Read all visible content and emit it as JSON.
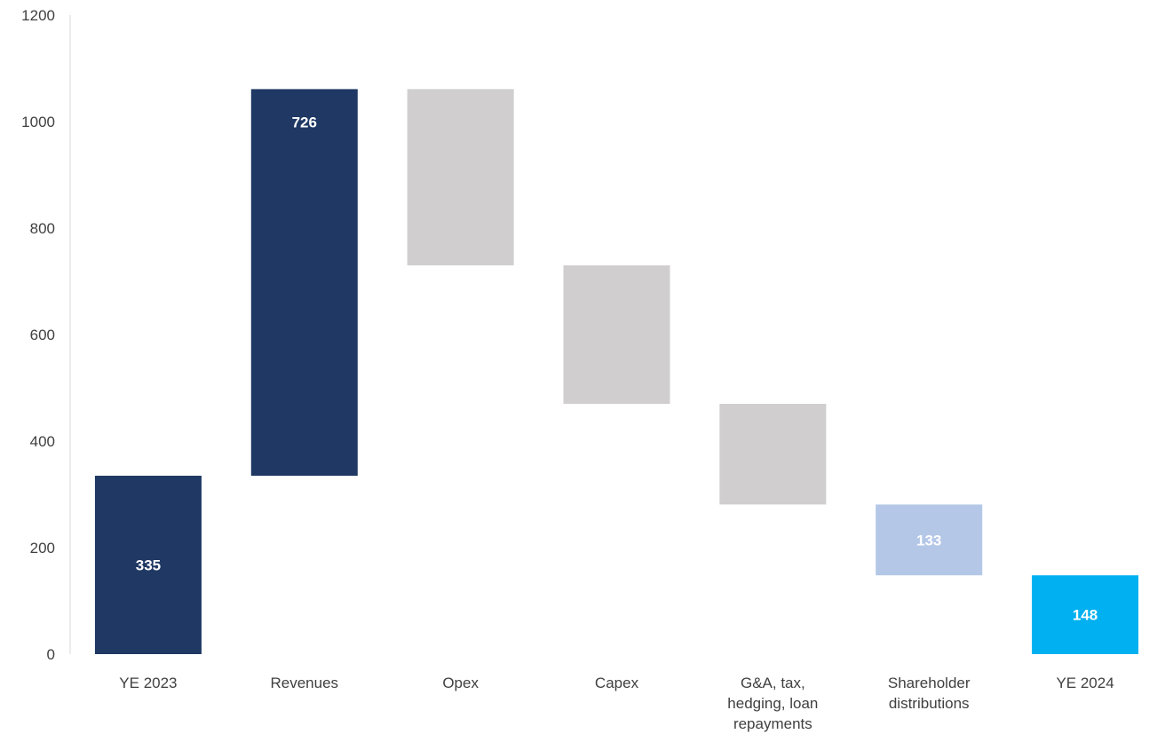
{
  "chart_data": {
    "type": "bar",
    "subtype": "waterfall",
    "categories": [
      "YE 2023",
      "Revenues",
      "Opex",
      "Capex",
      "G&A, tax, hedging, loan repayments",
      "Shareholder distributions",
      "YE 2024"
    ],
    "category_label_lines": [
      [
        "YE 2023"
      ],
      [
        "Revenues"
      ],
      [
        "Opex"
      ],
      [
        "Capex"
      ],
      [
        "G&A, tax,",
        "hedging, loan",
        "repayments"
      ],
      [
        "Shareholder",
        "distributions"
      ],
      [
        "YE 2024"
      ]
    ],
    "bars": [
      {
        "category": "YE 2023",
        "base": 0,
        "top": 335,
        "label": "335",
        "color": "#1f3864"
      },
      {
        "category": "Revenues",
        "base": 335,
        "top": 1061,
        "label": "726",
        "color": "#1f3864"
      },
      {
        "category": "Opex",
        "base": 730,
        "top": 1061,
        "label": "",
        "color": "#d0cece"
      },
      {
        "category": "Capex",
        "base": 470,
        "top": 730,
        "label": "",
        "color": "#d0cece"
      },
      {
        "category": "G&A, tax, hedging, loan repayments",
        "base": 281,
        "top": 470,
        "label": "",
        "color": "#d0cece"
      },
      {
        "category": "Shareholder distributions",
        "base": 148,
        "top": 281,
        "label": "133",
        "color": "#b4c7e7"
      },
      {
        "category": "YE 2024",
        "base": 0,
        "top": 148,
        "label": "148",
        "color": "#00b0f0"
      }
    ],
    "title": "",
    "xlabel": "",
    "ylabel": "",
    "ylim": [
      0,
      1200
    ],
    "yticks": [
      0,
      200,
      400,
      600,
      800,
      1000,
      1200
    ],
    "grid": false,
    "legend": "none"
  }
}
